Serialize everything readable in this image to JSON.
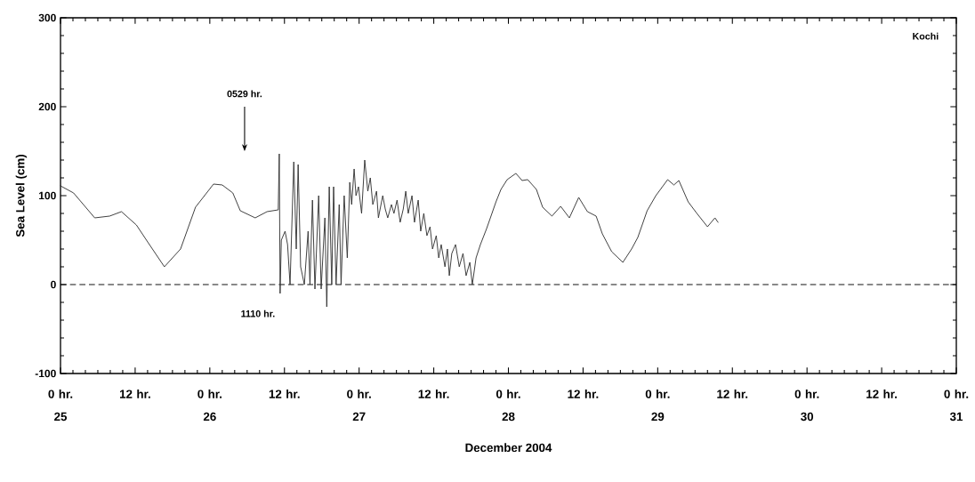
{
  "chart_data": {
    "type": "line",
    "xlabel": "December 2004",
    "ylabel": "Sea Level (cm)",
    "annotations": [
      "Kochi",
      "0529 hr.",
      {
        "text": "1110 hr.",
        "x": "2004-12-26T11:10",
        "y": 0
      }
    ],
    "xlim": [
      "2004-12-25T00:00",
      "2004-12-31T00:00"
    ],
    "ylim": [
      -100,
      300
    ],
    "xticks": [
      {
        "value": "2004-12-25T00:00",
        "label": "0 hr. **25**"
      },
      {
        "value": "2004-12-25T12:00",
        "label": "12 hr."
      },
      {
        "value": "2004-12-26T00:00",
        "label": "0 hr. **26**"
      },
      {
        "value": "2004-12-26T12:00",
        "label": "12 hr."
      },
      {
        "value": "2004-12-27T00:00",
        "label": "0 hr. **27**"
      },
      {
        "value": "2004-12-27T12:00",
        "label": "12 hr."
      },
      {
        "value": "2004-12-28T00:00",
        "label": "0 hr. **28**"
      },
      {
        "value": "2004-12-28T12:00",
        "label": "12 hr."
      },
      {
        "value": "2004-12-29T00:00",
        "label": "0 hr. **29**"
      },
      {
        "value": "2004-12-29T12:00",
        "label": "12 hr."
      },
      {
        "value": "2004-12-30T00:00",
        "label": "0 hr. **30**"
      },
      {
        "value": "2004-12-30T12:00",
        "label": "12 hr."
      },
      {
        "value": "2004-12-31T00:00",
        "label": "0 hr. **31**"
      }
    ],
    "yticks": [
      -100,
      0,
      100,
      200,
      300
    ],
    "ref_lines": [
      {
        "axis": "y",
        "value": 0,
        "line_style": "dashed",
        "color": "#000000"
      }
    ],
    "series": [
      {
        "color": "#333333",
        "x": [
          "2004-12-25T00:00",
          "2004-12-25T02:06",
          "2004-12-25T05:30",
          "2004-12-25T07:54",
          "2004-12-25T09:48",
          "2004-12-25T12:12",
          "2004-12-25T14:06",
          "2004-12-25T16:42",
          "2004-12-25T19:18",
          "2004-12-25T21:42",
          "2004-12-26T00:36",
          "2004-12-26T02:00",
          "2004-12-26T03:42",
          "2004-12-26T04:54",
          "2004-12-26T07:18",
          "2004-12-26T09:12",
          "2004-12-26T11:00",
          "2004-12-26T11:10",
          "2004-12-26T11:18",
          "2004-12-26T11:30",
          "2004-12-26T12:06",
          "2004-12-26T12:30",
          "2004-12-26T12:54",
          "2004-12-26T13:30",
          "2004-12-26T13:54",
          "2004-12-26T14:12",
          "2004-12-26T14:36",
          "2004-12-26T15:12",
          "2004-12-26T15:48",
          "2004-12-26T16:06",
          "2004-12-26T16:30",
          "2004-12-26T16:54",
          "2004-12-26T17:30",
          "2004-12-26T17:54",
          "2004-12-26T18:30",
          "2004-12-26T18:48",
          "2004-12-26T19:12",
          "2004-12-26T19:36",
          "2004-12-26T19:54",
          "2004-12-26T20:18",
          "2004-12-26T20:48",
          "2004-12-26T21:06",
          "2004-12-26T21:36",
          "2004-12-26T22:06",
          "2004-12-26T22:30",
          "2004-12-26T22:48",
          "2004-12-26T23:12",
          "2004-12-26T23:30",
          "2004-12-26T23:54",
          "2004-12-27T00:24",
          "2004-12-27T00:54",
          "2004-12-27T01:24",
          "2004-12-27T01:48",
          "2004-12-27T02:12",
          "2004-12-27T02:48",
          "2004-12-27T03:06",
          "2004-12-27T03:48",
          "2004-12-27T04:12",
          "2004-12-27T04:36",
          "2004-12-27T05:12",
          "2004-12-27T05:36",
          "2004-12-27T06:06",
          "2004-12-27T06:36",
          "2004-12-27T07:06",
          "2004-12-27T07:30",
          "2004-12-27T07:54",
          "2004-12-27T08:30",
          "2004-12-27T08:54",
          "2004-12-27T09:30",
          "2004-12-27T09:54",
          "2004-12-27T10:24",
          "2004-12-27T10:54",
          "2004-12-27T11:24",
          "2004-12-27T11:48",
          "2004-12-27T12:24",
          "2004-12-27T12:48",
          "2004-12-27T13:12",
          "2004-12-27T13:48",
          "2004-12-27T14:12",
          "2004-12-27T14:30",
          "2004-12-27T14:54",
          "2004-12-27T15:30",
          "2004-12-27T16:06",
          "2004-12-27T16:42",
          "2004-12-27T17:12",
          "2004-12-27T17:48",
          "2004-12-27T18:12",
          "2004-12-27T18:48",
          "2004-12-27T19:30",
          "2004-12-27T20:30",
          "2004-12-27T22:00",
          "2004-12-27T22:48",
          "2004-12-27T23:48",
          "2004-12-28T01:12",
          "2004-12-28T02:12",
          "2004-12-28T03:06",
          "2004-12-28T04:30",
          "2004-12-28T05:30",
          "2004-12-28T07:00",
          "2004-12-28T08:24",
          "2004-12-28T09:48",
          "2004-12-28T11:18",
          "2004-12-28T12:42",
          "2004-12-28T14:06",
          "2004-12-28T15:06",
          "2004-12-28T16:36",
          "2004-12-28T18:24",
          "2004-12-28T19:48",
          "2004-12-28T20:48",
          "2004-12-28T22:18",
          "2004-12-28T23:42",
          "2004-12-29T01:36",
          "2004-12-29T02:36",
          "2004-12-29T03:24",
          "2004-12-29T04:54",
          "2004-12-29T06:18",
          "2004-12-29T08:00",
          "2004-12-29T09:12",
          "2004-12-29T09:42"
        ],
        "values": [
          111,
          103,
          75,
          77,
          82,
          67,
          47,
          20,
          40,
          87,
          113,
          112,
          103,
          83,
          75,
          82,
          84,
          147,
          -10,
          50,
          60,
          45,
          0,
          138,
          40,
          135,
          20,
          0,
          60,
          0,
          95,
          -5,
          100,
          -5,
          75,
          -25,
          110,
          0,
          110,
          0,
          90,
          0,
          100,
          30,
          115,
          90,
          130,
          100,
          110,
          80,
          140,
          105,
          120,
          90,
          105,
          75,
          100,
          85,
          75,
          90,
          80,
          95,
          70,
          85,
          105,
          80,
          100,
          70,
          95,
          60,
          80,
          55,
          65,
          40,
          55,
          30,
          45,
          20,
          40,
          10,
          35,
          45,
          20,
          35,
          10,
          25,
          0,
          30,
          45,
          63,
          93,
          107,
          118,
          125,
          117,
          118,
          107,
          87,
          77,
          88,
          75,
          98,
          82,
          77,
          57,
          37,
          25,
          40,
          53,
          83,
          100,
          118,
          112,
          117,
          93,
          80,
          65,
          75,
          70
        ]
      }
    ]
  }
}
